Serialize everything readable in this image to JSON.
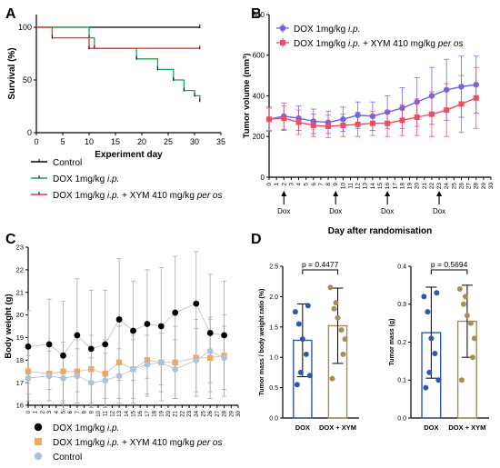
{
  "panels": {
    "A": "A",
    "B": "B",
    "C": "C",
    "D": "D"
  },
  "colors": {
    "control": "#000000",
    "dox_ip": "#22a25a",
    "dox_xym": "#e8372e",
    "b_dox": "#6a63ee",
    "b_xym": "#ee4d63",
    "c_dox": "#000000",
    "c_xym": "#f0a860",
    "c_control": "#a9c3e0",
    "d_dox": "#2d5aa6",
    "d_xym": "#a88e52",
    "axis": "#000000",
    "errorbar": "#aaaaaa"
  },
  "chart_data": [
    {
      "id": "A",
      "type": "line",
      "step": true,
      "xlabel": "Experiment day",
      "ylabel": "Survival (%)",
      "xlim": [
        0,
        35
      ],
      "ylim": [
        0,
        100
      ],
      "xticks": [
        "0",
        "5",
        "10",
        "15",
        "20",
        "25",
        "30",
        "35"
      ],
      "yticks": [
        "0",
        "50",
        "100"
      ],
      "series": [
        {
          "name": "Control",
          "color_key": "control",
          "x": [
            0,
            31
          ],
          "y": [
            100,
            100
          ]
        },
        {
          "name": "DOX 1mg/kg i.p.",
          "color_key": "dox_ip",
          "x": [
            0,
            10,
            11,
            19,
            23,
            26,
            28,
            30,
            31
          ],
          "y": [
            100,
            90,
            80,
            70,
            60,
            50,
            40,
            35,
            30
          ]
        },
        {
          "name": "DOX 1mg/kg i.p. + XYM 410 mg/kg per os",
          "color_key": "dox_xym",
          "x": [
            0,
            3,
            10,
            31
          ],
          "y": [
            100,
            90,
            80,
            80
          ]
        }
      ],
      "legend": [
        {
          "pre": "Control",
          "ital": "",
          "mid": "",
          "ital2": "",
          "color_key": "control"
        },
        {
          "pre": "DOX 1mg/kg ",
          "ital": "i.p.",
          "mid": "",
          "ital2": "",
          "color_key": "dox_ip"
        },
        {
          "pre": "DOX 1mg/kg ",
          "ital": "i.p.",
          "mid": " + XYM 410 mg/kg ",
          "ital2": "per os",
          "color_key": "dox_xym"
        }
      ]
    },
    {
      "id": "B",
      "type": "line",
      "xlabel": "Day after randomisation",
      "ylabel": "Tumor volume (mm³)",
      "xlim": [
        0,
        30
      ],
      "ylim": [
        0,
        800
      ],
      "xticks": [
        "0",
        "1",
        "2",
        "3",
        "4",
        "5",
        "6",
        "7",
        "8",
        "9",
        "10",
        "11",
        "12",
        "13",
        "14",
        "15",
        "16",
        "17",
        "18",
        "19",
        "20",
        "21",
        "22",
        "23",
        "24",
        "25",
        "26",
        "27",
        "28",
        "29",
        "30"
      ],
      "yticks": [
        "0",
        "200",
        "400",
        "600",
        "800"
      ],
      "dox_days": [
        2,
        9,
        16,
        23
      ],
      "dox_label": "Dox",
      "series": [
        {
          "name": "DOX 1mg/kg i.p.",
          "color_key": "b_dox",
          "x": [
            0,
            2,
            4,
            6,
            8,
            10,
            12,
            14,
            16,
            18,
            20,
            22,
            24,
            26,
            28
          ],
          "y": [
            285,
            300,
            290,
            275,
            270,
            285,
            305,
            300,
            320,
            340,
            370,
            400,
            430,
            445,
            455
          ],
          "err": [
            60,
            65,
            60,
            60,
            55,
            60,
            65,
            70,
            80,
            100,
            120,
            140,
            150,
            150,
            140
          ]
        },
        {
          "name": "DOX 1mg/kg i.p. + XYM 410 mg/kg per os",
          "color_key": "b_xym",
          "x": [
            0,
            2,
            4,
            6,
            8,
            10,
            12,
            14,
            16,
            18,
            20,
            22,
            24,
            26,
            28
          ],
          "y": [
            285,
            290,
            270,
            255,
            250,
            255,
            260,
            265,
            265,
            280,
            295,
            310,
            330,
            360,
            390
          ],
          "err": [
            55,
            60,
            60,
            55,
            55,
            55,
            60,
            60,
            65,
            75,
            90,
            110,
            130,
            140,
            150
          ]
        }
      ],
      "legend": [
        {
          "pre": "DOX 1mg/kg ",
          "ital": "i.p.",
          "mid": "",
          "ital2": "",
          "color_key": "b_dox"
        },
        {
          "pre": "DOX 1mg/kg ",
          "ital": "i.p.",
          "mid": " + XYM 410 mg/kg ",
          "ital2": "per os",
          "color_key": "b_xym"
        }
      ]
    },
    {
      "id": "C",
      "type": "scatter",
      "xlabel": "",
      "ylabel": "Body weight (g)",
      "xlim": [
        0,
        30
      ],
      "ylim": [
        16,
        23
      ],
      "xticks": [
        "0",
        "1",
        "2",
        "3",
        "4",
        "5",
        "6",
        "7",
        "8",
        "9",
        "10",
        "11",
        "12",
        "13",
        "14",
        "15",
        "16",
        "17",
        "18",
        "19",
        "20",
        "21",
        "22",
        "23",
        "24",
        "25",
        "26",
        "27",
        "28",
        "29",
        "30"
      ],
      "yticks": [
        "16",
        "17",
        "18",
        "19",
        "20",
        "21",
        "22",
        "23"
      ],
      "series": [
        {
          "name": "DOX 1mg/kg i.p.",
          "color_key": "c_dox",
          "x": [
            0,
            3,
            5,
            7,
            9,
            11,
            13,
            15,
            17,
            19,
            21,
            24,
            26,
            28
          ],
          "y": [
            18.6,
            18.7,
            18.2,
            19.1,
            18.5,
            18.7,
            19.8,
            19.3,
            19.6,
            19.5,
            20.1,
            20.5,
            19.2,
            19.1
          ],
          "err": [
            1.6,
            2.0,
            2.4,
            2.5,
            2.6,
            2.4,
            2.7,
            2.2,
            2.4,
            2.6,
            2.5,
            2.3,
            2.6,
            2.4
          ]
        },
        {
          "name": "DOX 1mg/kg i.p. + XYM 410 mg/kg per os",
          "color_key": "c_xym",
          "x": [
            0,
            3,
            5,
            7,
            9,
            11,
            13,
            15,
            17,
            19,
            21,
            24,
            26,
            28
          ],
          "y": [
            17.5,
            17.4,
            17.5,
            17.5,
            17.6,
            17.4,
            17.9,
            17.6,
            18.0,
            17.9,
            17.9,
            18.1,
            18.1,
            18.2
          ],
          "err": [
            1.0,
            1.2,
            1.3,
            1.4,
            1.5,
            1.5,
            1.6,
            1.5,
            1.6,
            1.7,
            1.6,
            1.7,
            1.8,
            1.8
          ]
        },
        {
          "name": "Control",
          "color_key": "c_control",
          "x": [
            0,
            3,
            5,
            7,
            9,
            11,
            13,
            15,
            17,
            19,
            21,
            24,
            26,
            28
          ],
          "y": [
            17.2,
            17.3,
            17.2,
            17.3,
            17.0,
            17.1,
            17.3,
            17.6,
            17.8,
            17.9,
            17.6,
            18.0,
            18.4,
            18.1
          ],
          "err": [
            1.0,
            1.1,
            1.1,
            1.2,
            1.1,
            1.2,
            1.2,
            1.3,
            1.3,
            1.3,
            1.3,
            1.4,
            1.4,
            1.4
          ]
        }
      ],
      "legend": [
        {
          "pre": "DOX 1mg/kg ",
          "ital": "i.p.",
          "mid": "",
          "ital2": "",
          "color_key": "c_dox"
        },
        {
          "pre": "DOX 1mg/kg ",
          "ital": "i.p.",
          "mid": " + XYM 410 mg/kg ",
          "ital2": "per os",
          "color_key": "c_xym"
        },
        {
          "pre": "Control",
          "ital": "",
          "mid": "",
          "ital2": "",
          "color_key": "c_control"
        }
      ]
    },
    {
      "id": "D1",
      "type": "bar",
      "categories": [
        "DOX",
        "DOX + XYM"
      ],
      "ylabel": "Tumor mass / body weight ratio (%)",
      "ylim": [
        0,
        2.5
      ],
      "yticks": [
        "0.0",
        "0.5",
        "1.0",
        "1.5",
        "2.0",
        "2.5"
      ],
      "pvalue": "p = 0.4477",
      "series": [
        {
          "name": "DOX",
          "color_key": "d_dox",
          "mean": 1.28,
          "sd": 0.6,
          "points": [
            1.75,
            1.55,
            1.3,
            1.05,
            0.7,
            0.55,
            1.85,
            0.75
          ]
        },
        {
          "name": "DOX + XYM",
          "color_key": "d_xym",
          "mean": 1.52,
          "sd": 0.62,
          "points": [
            2.15,
            1.8,
            1.65,
            1.45,
            1.3,
            0.65,
            1.05,
            1.9
          ]
        }
      ]
    },
    {
      "id": "D2",
      "type": "bar",
      "categories": [
        "DOX",
        "DOX + XYM"
      ],
      "ylabel": "Tumor mass (g)",
      "ylim": [
        0,
        0.4
      ],
      "yticks": [
        "0.0",
        "0.1",
        "0.2",
        "0.3",
        "0.4"
      ],
      "pvalue": "p = 0.5694",
      "series": [
        {
          "name": "DOX",
          "color_key": "d_dox",
          "mean": 0.225,
          "sd": 0.12,
          "points": [
            0.32,
            0.28,
            0.21,
            0.17,
            0.1,
            0.08,
            0.33,
            0.12
          ]
        },
        {
          "name": "DOX + XYM",
          "color_key": "d_xym",
          "mean": 0.255,
          "sd": 0.095,
          "points": [
            0.34,
            0.3,
            0.27,
            0.25,
            0.21,
            0.1,
            0.16,
            0.32
          ]
        }
      ]
    }
  ]
}
